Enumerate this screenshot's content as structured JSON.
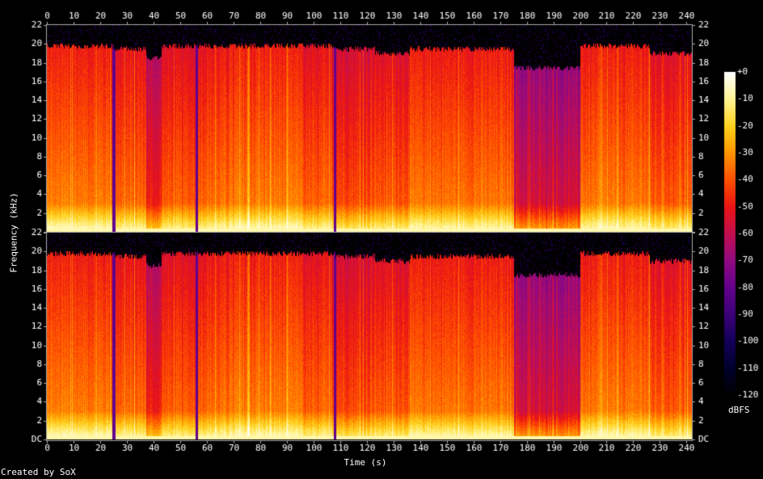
{
  "chart_data": {
    "type": "heatmap",
    "title": "",
    "xlabel": "Time (s)",
    "ylabel": "Frequency (kHz)",
    "x_ticks": [
      "0",
      "10",
      "20",
      "30",
      "40",
      "50",
      "60",
      "70",
      "80",
      "90",
      "100",
      "110",
      "120",
      "130",
      "140",
      "150",
      "160",
      "170",
      "180",
      "190",
      "200",
      "210",
      "220",
      "230",
      "240"
    ],
    "y_ticks": [
      "DC",
      "2",
      "4",
      "6",
      "8",
      "10",
      "12",
      "14",
      "16",
      "18",
      "20",
      "22"
    ],
    "xlim": [
      0,
      242
    ],
    "ylim_khz": [
      0,
      22
    ],
    "channels": 2,
    "colorbar": {
      "label": "dBFS",
      "ticks": [
        "+0",
        "-10",
        "-20",
        "-30",
        "-40",
        "-50",
        "-60",
        "-70",
        "-80",
        "-90",
        "-100",
        "-110",
        "-120"
      ],
      "range": [
        -120,
        0
      ]
    },
    "segments": [
      {
        "start": 0,
        "end": 25,
        "cutoff_khz": 19.8,
        "level_db": -45
      },
      {
        "start": 25,
        "end": 37,
        "cutoff_khz": 19.5,
        "level_db": -48
      },
      {
        "start": 37,
        "end": 43,
        "cutoff_khz": 18.5,
        "level_db": -60
      },
      {
        "start": 43,
        "end": 56,
        "cutoff_khz": 19.8,
        "level_db": -50
      },
      {
        "start": 56,
        "end": 70,
        "cutoff_khz": 19.8,
        "level_db": -47
      },
      {
        "start": 70,
        "end": 96,
        "cutoff_khz": 19.8,
        "level_db": -45
      },
      {
        "start": 96,
        "end": 108,
        "cutoff_khz": 19.8,
        "level_db": -50
      },
      {
        "start": 108,
        "end": 123,
        "cutoff_khz": 19.5,
        "level_db": -52
      },
      {
        "start": 123,
        "end": 136,
        "cutoff_khz": 19.0,
        "level_db": -50
      },
      {
        "start": 136,
        "end": 175,
        "cutoff_khz": 19.5,
        "level_db": -46
      },
      {
        "start": 175,
        "end": 200,
        "cutoff_khz": 17.5,
        "level_db": -68
      },
      {
        "start": 200,
        "end": 226,
        "cutoff_khz": 19.8,
        "level_db": -46
      },
      {
        "start": 226,
        "end": 242,
        "cutoff_khz": 19.0,
        "level_db": -50
      }
    ]
  },
  "footer": {
    "credit": "Created by SoX"
  }
}
